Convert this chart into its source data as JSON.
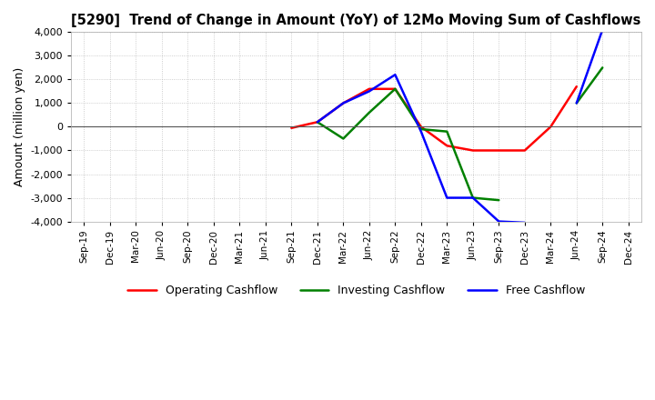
{
  "title": "[5290]  Trend of Change in Amount (YoY) of 12Mo Moving Sum of Cashflows",
  "ylabel": "Amount (million yen)",
  "ylim": [
    -4000,
    4000
  ],
  "yticks": [
    -4000,
    -3000,
    -2000,
    -1000,
    0,
    1000,
    2000,
    3000,
    4000
  ],
  "x_labels": [
    "Sep-19",
    "Dec-19",
    "Mar-20",
    "Jun-20",
    "Sep-20",
    "Dec-20",
    "Mar-21",
    "Jun-21",
    "Sep-21",
    "Dec-21",
    "Mar-22",
    "Jun-22",
    "Sep-22",
    "Dec-22",
    "Mar-23",
    "Jun-23",
    "Sep-23",
    "Dec-23",
    "Mar-24",
    "Jun-24",
    "Sep-24",
    "Dec-24"
  ],
  "operating": [
    null,
    null,
    null,
    null,
    null,
    null,
    null,
    null,
    -50,
    200,
    1000,
    1600,
    1600,
    0,
    -800,
    -1000,
    -1000,
    -1000,
    0,
    1700,
    null,
    null
  ],
  "investing": [
    null,
    null,
    null,
    null,
    null,
    null,
    null,
    null,
    null,
    200,
    -500,
    600,
    1600,
    -100,
    -200,
    -3000,
    -3100,
    null,
    null,
    1000,
    2500,
    null
  ],
  "free": [
    null,
    null,
    null,
    null,
    null,
    null,
    null,
    null,
    null,
    200,
    1000,
    1500,
    2200,
    -200,
    -3000,
    -3000,
    -4000,
    -4050,
    null,
    1000,
    4100,
    null
  ],
  "colors": {
    "operating": "#ff0000",
    "investing": "#008000",
    "free": "#0000ff"
  },
  "legend_labels": [
    "Operating Cashflow",
    "Investing Cashflow",
    "Free Cashflow"
  ],
  "background_color": "#ffffff",
  "grid_color": "#b0b0b0",
  "grid_style": "dotted"
}
